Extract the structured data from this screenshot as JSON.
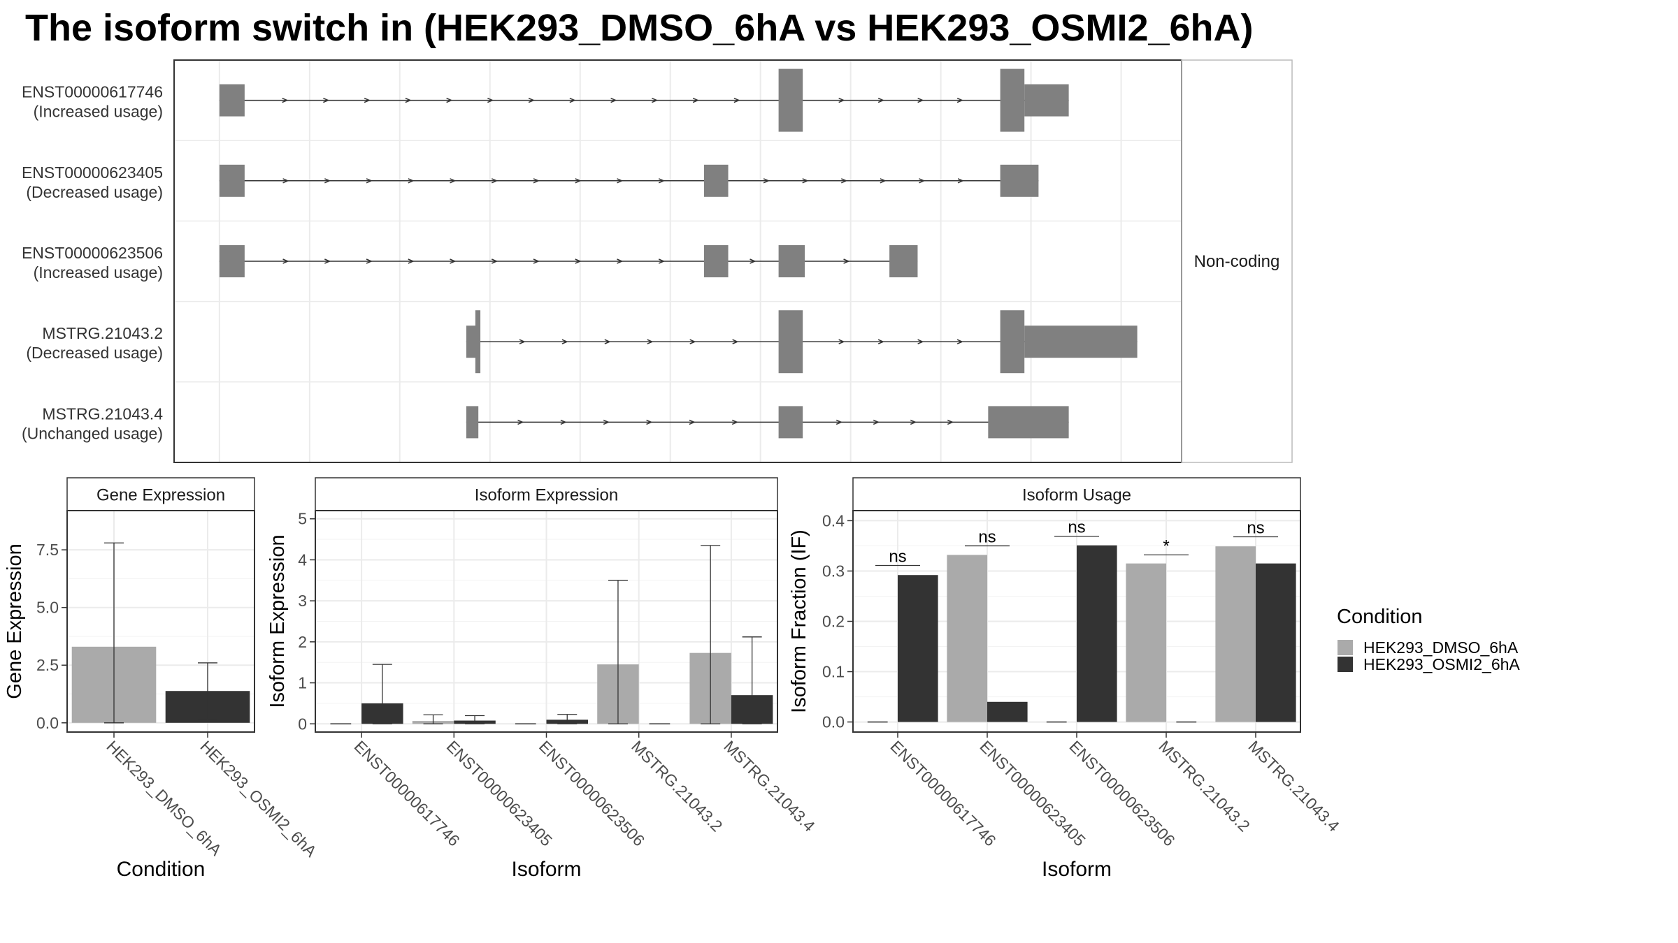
{
  "title": "The isoform switch in  (HEK293_DMSO_6hA vs HEK293_OSMI2_6hA)",
  "chart_data": [
    {
      "type": "gene-structure",
      "facet_label": "Non-coding",
      "x_range": [
        0,
        100
      ],
      "transcripts": [
        {
          "id": "ENST00000617746",
          "usage": "(Increased usage)",
          "exons": [
            {
              "start": 4.5,
              "end": 7.0,
              "tall": false
            },
            {
              "start": 60.0,
              "end": 62.4,
              "tall": true
            },
            {
              "start": 82.0,
              "end": 84.4,
              "tall": true
            },
            {
              "start": 84.4,
              "end": 88.8,
              "tall": false
            }
          ]
        },
        {
          "id": "ENST00000623405",
          "usage": "(Decreased usage)",
          "exons": [
            {
              "start": 4.5,
              "end": 7.0,
              "tall": false
            },
            {
              "start": 52.6,
              "end": 55.0,
              "tall": false
            },
            {
              "start": 82.0,
              "end": 85.8,
              "tall": false
            }
          ]
        },
        {
          "id": "ENST00000623506",
          "usage": "(Increased usage)",
          "exons": [
            {
              "start": 4.5,
              "end": 7.0,
              "tall": false
            },
            {
              "start": 52.6,
              "end": 55.0,
              "tall": false
            },
            {
              "start": 60.0,
              "end": 62.6,
              "tall": false
            },
            {
              "start": 71.0,
              "end": 73.8,
              "tall": false
            }
          ]
        },
        {
          "id": "MSTRG.21043.2",
          "usage": "(Decreased usage)",
          "exons": [
            {
              "start": 29.0,
              "end": 30.0,
              "tall": false
            },
            {
              "start": 29.9,
              "end": 30.4,
              "tall": true
            },
            {
              "start": 60.0,
              "end": 62.4,
              "tall": true
            },
            {
              "start": 82.0,
              "end": 84.4,
              "tall": true
            },
            {
              "start": 84.4,
              "end": 95.6,
              "tall": false
            }
          ]
        },
        {
          "id": "MSTRG.21043.4",
          "usage": "(Unchanged usage)",
          "exons": [
            {
              "start": 29.0,
              "end": 30.2,
              "tall": false
            },
            {
              "start": 60.0,
              "end": 62.4,
              "tall": false
            },
            {
              "start": 80.8,
              "end": 88.8,
              "tall": false
            }
          ]
        }
      ]
    },
    {
      "type": "bar",
      "facet_label": "Gene Expression",
      "xlabel": "Condition",
      "ylabel": "Gene Expression",
      "ylim": [
        -0.4,
        9.2
      ],
      "yticks": [
        "0.0",
        "2.5",
        "5.0",
        "7.5"
      ],
      "categories": [
        "HEK293_DMSO_6hA",
        "HEK293_OSMI2_6hA"
      ],
      "values": [
        3.3,
        1.38
      ],
      "error_low": [
        0.0,
        0.15
      ],
      "error_high": [
        7.8,
        2.6
      ]
    },
    {
      "type": "grouped-bar",
      "facet_label": "Isoform Expression",
      "xlabel": "Isoform",
      "ylabel": "Isoform Expression",
      "ylim": [
        -0.2,
        5.2
      ],
      "yticks": [
        "0",
        "1",
        "2",
        "3",
        "4",
        "5"
      ],
      "categories": [
        "ENST00000617746",
        "ENST00000623405",
        "ENST00000623506",
        "MSTRG.21043.2",
        "MSTRG.21043.4"
      ],
      "series": [
        {
          "name": "HEK293_DMSO_6hA",
          "values": [
            0,
            0.07,
            0,
            1.45,
            1.73
          ],
          "error_low": [
            0,
            0.0,
            0,
            0.0,
            0.0
          ],
          "error_high": [
            0,
            0.22,
            0,
            3.5,
            4.35
          ]
        },
        {
          "name": "HEK293_OSMI2_6hA",
          "values": [
            0.5,
            0.08,
            0.1,
            0,
            0.7
          ],
          "error_low": [
            0.0,
            0.0,
            0.0,
            0,
            0.0
          ],
          "error_high": [
            1.45,
            0.2,
            0.23,
            0,
            2.12
          ]
        }
      ]
    },
    {
      "type": "grouped-bar",
      "facet_label": "Isoform Usage",
      "xlabel": "Isoform",
      "ylabel": "Isoform Fraction (IF)",
      "ylim": [
        -0.02,
        0.42
      ],
      "yticks": [
        "0.0",
        "0.1",
        "0.2",
        "0.3",
        "0.4"
      ],
      "categories": [
        "ENST00000617746",
        "ENST00000623405",
        "ENST00000623506",
        "MSTRG.21043.2",
        "MSTRG.21043.4"
      ],
      "series": [
        {
          "name": "HEK293_DMSO_6hA",
          "values": [
            0,
            0.332,
            0,
            0.315,
            0.349
          ]
        },
        {
          "name": "HEK293_OSMI2_6hA",
          "values": [
            0.292,
            0.04,
            0.351,
            0,
            0.315
          ]
        }
      ],
      "significance": [
        {
          "label": "ns",
          "y": 0.311
        },
        {
          "label": "ns",
          "y": 0.35
        },
        {
          "label": "ns",
          "y": 0.369
        },
        {
          "label": "*",
          "y": 0.332
        },
        {
          "label": "ns",
          "y": 0.368
        }
      ]
    }
  ],
  "legend": {
    "title": "Condition",
    "items": [
      {
        "label": "HEK293_DMSO_6hA",
        "color": "#aaaaaa"
      },
      {
        "label": "HEK293_OSMI2_6hA",
        "color": "#333333"
      }
    ]
  },
  "colors": {
    "exon": "#808080",
    "intron": "#333333",
    "grid": "#ebebeb",
    "border": "#333333",
    "strip_bg": "#ffffff"
  }
}
